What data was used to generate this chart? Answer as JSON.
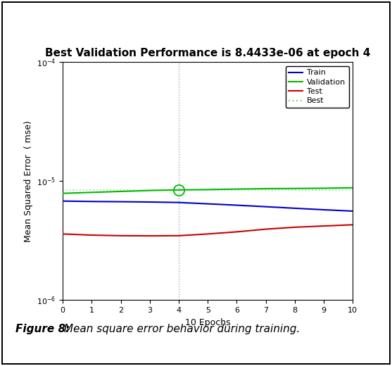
{
  "title": "Best Validation Performance is 8.4433e-06 at epoch 4",
  "xlabel": "10 Epochs",
  "ylabel": "Mean Squared Error  ( mse)",
  "xlim": [
    0,
    10
  ],
  "ylim_log": [
    1e-06,
    0.0001
  ],
  "best_epoch": 4,
  "best_value": 8.4433e-06,
  "train_x": [
    0,
    1,
    2,
    3,
    4,
    5,
    6,
    7,
    8,
    9,
    10
  ],
  "train_y": [
    6.8e-06,
    6.75e-06,
    6.72e-06,
    6.68e-06,
    6.62e-06,
    6.45e-06,
    6.28e-06,
    6.1e-06,
    5.92e-06,
    5.75e-06,
    5.6e-06
  ],
  "val_x": [
    0,
    1,
    2,
    3,
    4,
    5,
    6,
    7,
    8,
    9,
    10
  ],
  "val_y": [
    7.9e-06,
    8.05e-06,
    8.2e-06,
    8.35e-06,
    8.4433e-06,
    8.5e-06,
    8.58e-06,
    8.65e-06,
    8.68e-06,
    8.72e-06,
    8.8e-06
  ],
  "test_x": [
    0,
    1,
    2,
    3,
    4,
    5,
    6,
    7,
    8,
    9,
    10
  ],
  "test_y": [
    3.6e-06,
    3.52e-06,
    3.48e-06,
    3.47e-06,
    3.48e-06,
    3.6e-06,
    3.75e-06,
    3.95e-06,
    4.1e-06,
    4.2e-06,
    4.3e-06
  ],
  "train_color": "#0000cc",
  "val_color": "#00bb00",
  "test_color": "#cc0000",
  "best_color_line": "#aaddaa",
  "best_color_legend": "#88cc88",
  "vline_color": "#aaaaaa",
  "background_color": "#ffffff",
  "legend_labels": [
    "Train",
    "Validation",
    "Test",
    "Best"
  ],
  "figure_caption_bold": "Figure 8:",
  "figure_caption_normal": " Mean square error behavior during training.",
  "title_fontsize": 11,
  "axis_fontsize": 9,
  "tick_fontsize": 8,
  "legend_fontsize": 8,
  "caption_fontsize": 11
}
